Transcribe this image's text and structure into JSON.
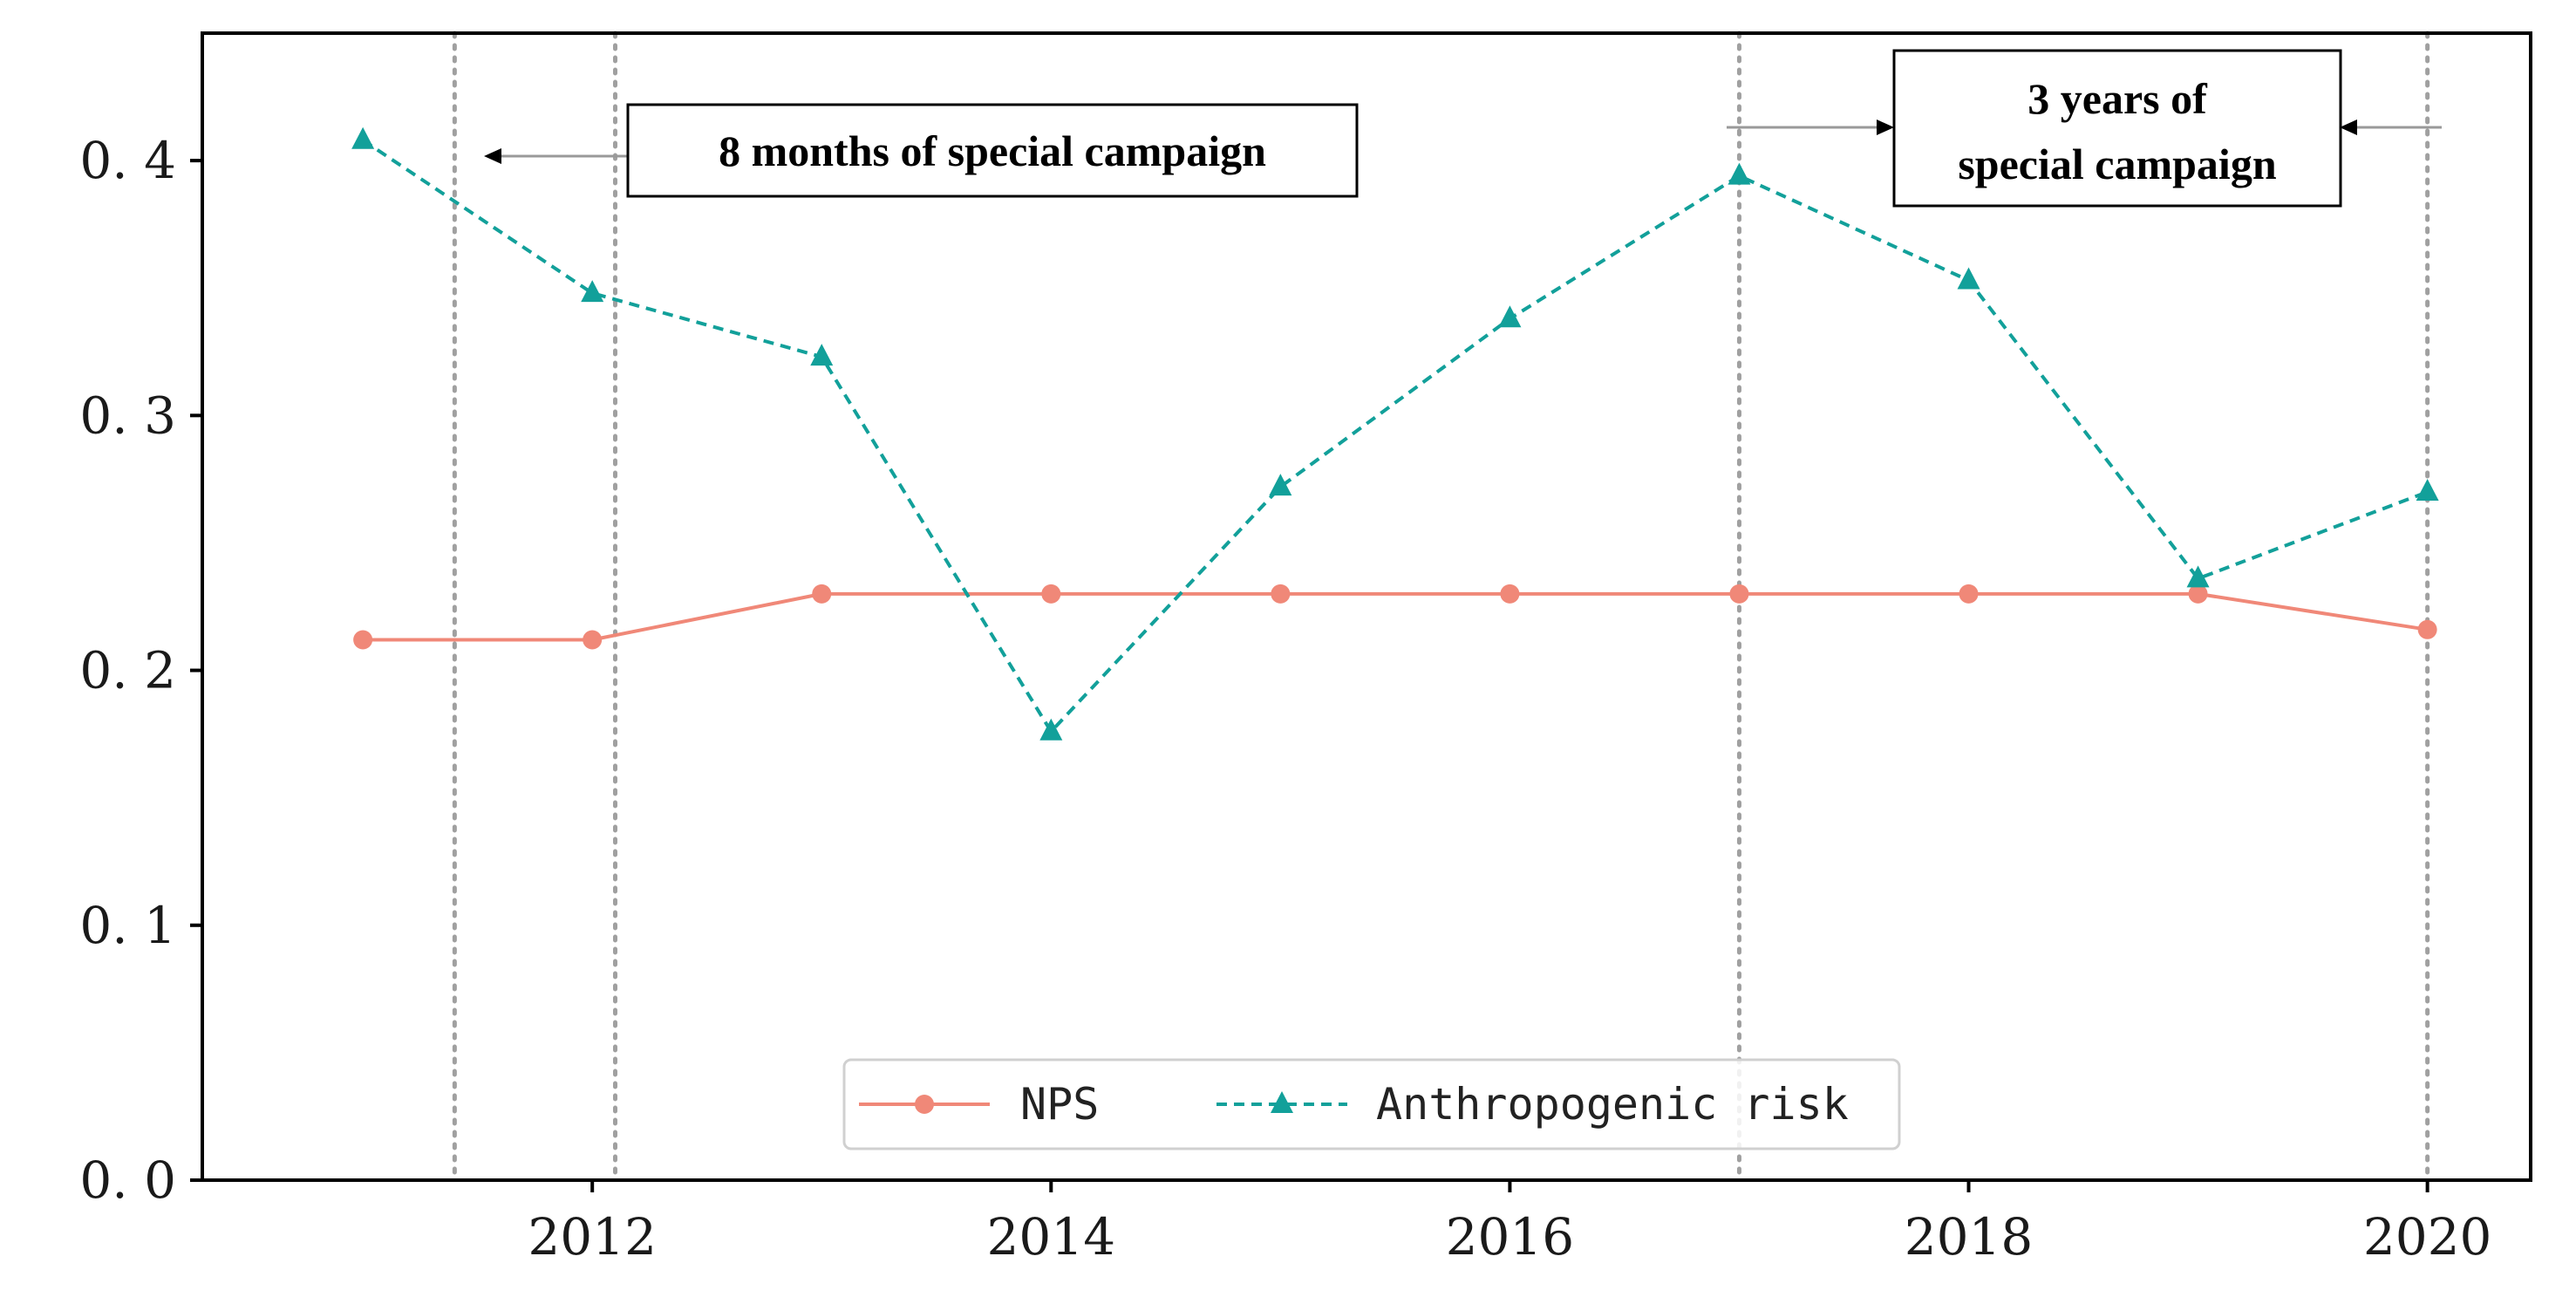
{
  "chart_data": {
    "type": "line",
    "title": "",
    "xlabel": "",
    "ylabel": "",
    "x": [
      2011,
      2012,
      2013,
      2014,
      2015,
      2016,
      2017,
      2018,
      2019,
      2020
    ],
    "xlim": [
      2010.3,
      2020.45
    ],
    "ylim": [
      0.0,
      0.45
    ],
    "x_ticks": [
      2012,
      2014,
      2016,
      2018,
      2020
    ],
    "x_tick_labels": [
      "2012",
      "2014",
      "2016",
      "2018",
      "2020"
    ],
    "y_ticks": [
      0.0,
      0.1,
      0.2,
      0.3,
      0.4
    ],
    "y_tick_labels": [
      "0. 0",
      "0. 1",
      "0. 2",
      "0. 3",
      "0. 4"
    ],
    "grid": false,
    "series": [
      {
        "name": "NPS",
        "style": "solid",
        "marker": "circle",
        "color": "#f08878",
        "values": [
          0.212,
          0.212,
          0.23,
          0.23,
          0.23,
          0.23,
          0.23,
          0.23,
          0.23,
          0.216
        ]
      },
      {
        "name": "Anthropogenic risk",
        "style": "dashed",
        "marker": "triangle",
        "color": "#12a09a",
        "values": [
          0.408,
          0.348,
          0.323,
          0.176,
          0.272,
          0.338,
          0.394,
          0.353,
          0.236,
          0.27
        ]
      }
    ],
    "vertical_lines": [
      2011.4,
      2012.1,
      2017.0,
      2020.0
    ],
    "annotations": [
      {
        "text": "8 months of special campaign"
      },
      {
        "text_lines": [
          "3 years of",
          "special campaign"
        ]
      }
    ],
    "legend": {
      "position": "bottom-center",
      "entries": [
        "NPS",
        "Anthropogenic risk"
      ]
    }
  }
}
